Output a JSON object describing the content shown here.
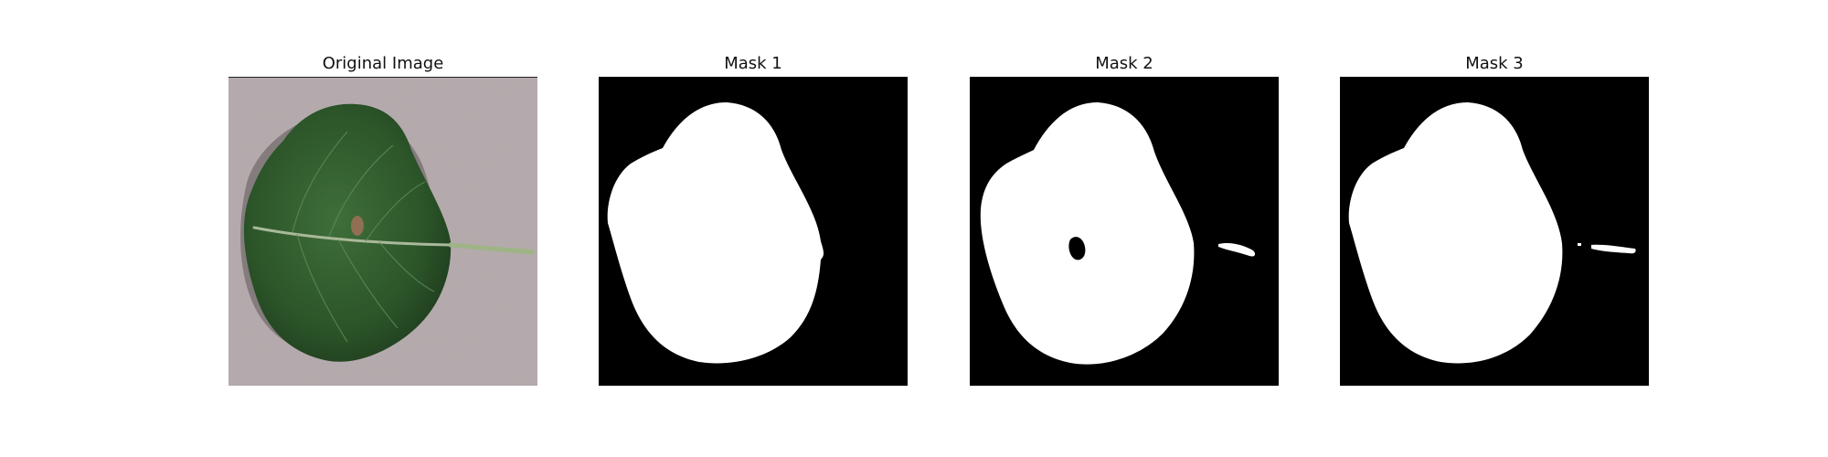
{
  "panels": [
    {
      "title": "Original Image",
      "kind": "photo"
    },
    {
      "title": "Mask 1",
      "kind": "mask"
    },
    {
      "title": "Mask 2",
      "kind": "mask"
    },
    {
      "title": "Mask 3",
      "kind": "mask"
    }
  ],
  "colors": {
    "background": "#b3a8ab",
    "leaf": "#2e5a2c",
    "mask_fg": "#ffffff",
    "mask_bg": "#000000"
  }
}
